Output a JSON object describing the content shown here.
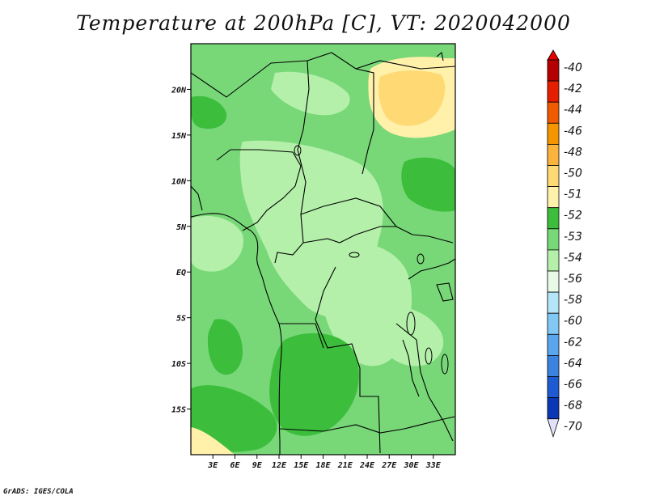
{
  "title": "Temperature at 200hPa [C], VT: 2020042000",
  "credit": "GrADS: IGES/COLA",
  "map": {
    "lon_range": [
      0,
      36
    ],
    "lat_range": [
      -20,
      25
    ],
    "lat_ticks": [
      {
        "value": 20,
        "label": "20N"
      },
      {
        "value": 15,
        "label": "15N"
      },
      {
        "value": 10,
        "label": "10N"
      },
      {
        "value": 5,
        "label": "5N"
      },
      {
        "value": 0,
        "label": "EQ"
      },
      {
        "value": -5,
        "label": "5S"
      },
      {
        "value": -10,
        "label": "10S"
      },
      {
        "value": -15,
        "label": "15S"
      }
    ],
    "lon_ticks": [
      {
        "value": 3,
        "label": "3E"
      },
      {
        "value": 6,
        "label": "6E"
      },
      {
        "value": 9,
        "label": "9E"
      },
      {
        "value": 12,
        "label": "12E"
      },
      {
        "value": 15,
        "label": "15E"
      },
      {
        "value": 18,
        "label": "18E"
      },
      {
        "value": 21,
        "label": "21E"
      },
      {
        "value": 24,
        "label": "24E"
      },
      {
        "value": 27,
        "label": "27E"
      },
      {
        "value": 30,
        "label": "30E"
      },
      {
        "value": 33,
        "label": "33E"
      }
    ]
  },
  "colorbar": {
    "levels": [
      {
        "label": "-40",
        "color": "#b40000"
      },
      {
        "label": "-42",
        "color": "#e61e00"
      },
      {
        "label": "-44",
        "color": "#f05a00"
      },
      {
        "label": "-46",
        "color": "#f59600"
      },
      {
        "label": "-48",
        "color": "#fab43c"
      },
      {
        "label": "-50",
        "color": "#fed974"
      },
      {
        "label": "-51",
        "color": "#fff0aa"
      },
      {
        "label": "-52",
        "color": "#3cbe3c"
      },
      {
        "label": "-53",
        "color": "#78d878"
      },
      {
        "label": "-54",
        "color": "#b4f0aa"
      },
      {
        "label": "-56",
        "color": "#e6fae6"
      },
      {
        "label": "-58",
        "color": "#b4e6fa"
      },
      {
        "label": "-60",
        "color": "#82c8f5"
      },
      {
        "label": "-62",
        "color": "#5aa5eb"
      },
      {
        "label": "-64",
        "color": "#3c82e1"
      },
      {
        "label": "-66",
        "color": "#1e5ad2"
      },
      {
        "label": "-68",
        "color": "#0a37b4"
      },
      {
        "label": "-70",
        "color": "#000a6e"
      }
    ],
    "top_color": "#e60000",
    "bottom_color": "#e1e1fa"
  }
}
